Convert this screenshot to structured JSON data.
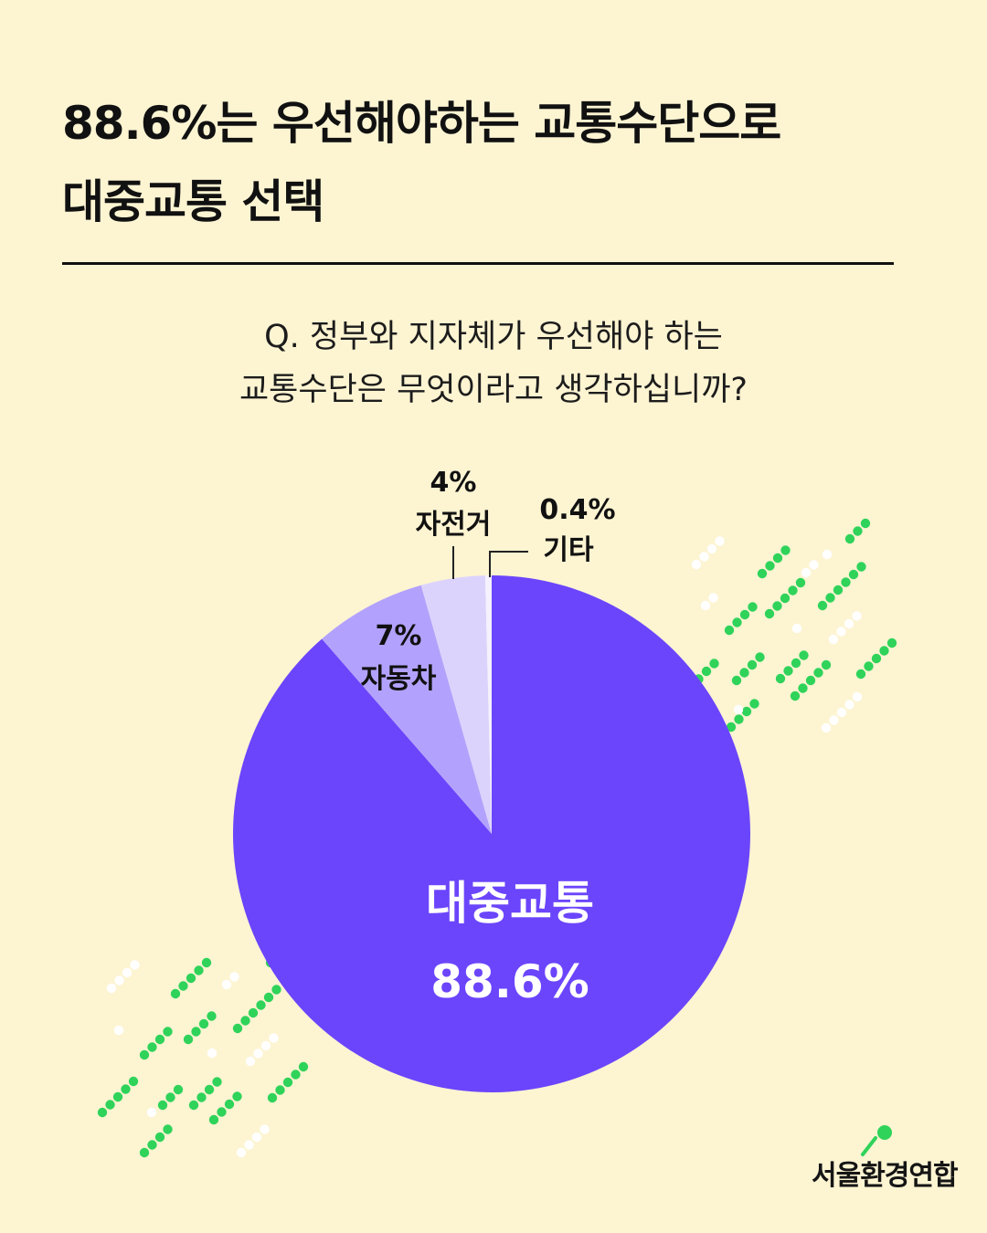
{
  "headline": {
    "line1": "88.6%는 우선해야하는 교통수단으로",
    "line2": "대중교통 선택"
  },
  "question": {
    "line1": "Q. 정부와 지자체가 우선해야 하는",
    "line2": "교통수단은 무엇이라고 생각하십니까?"
  },
  "chart_data": {
    "type": "pie",
    "title": "",
    "slices": [
      {
        "label": "대중교통",
        "value": 88.6,
        "value_label": "88.6%",
        "color": "#6b45fb"
      },
      {
        "label": "자동차",
        "value": 7,
        "value_label": "7%",
        "color": "#b3a2fd"
      },
      {
        "label": "자전거",
        "value": 4,
        "value_label": "4%",
        "color": "#dcd3fd"
      },
      {
        "label": "기타",
        "value": 0.4,
        "value_label": "0.4%",
        "color": "#f5f1ff"
      }
    ],
    "start": "12 o'clock",
    "direction": "clockwise"
  },
  "colors": {
    "background": "#fdf4d2",
    "text": "#111111",
    "accent_green": "#2fd35a",
    "dot_white": "#ffffff"
  },
  "logo": {
    "text": "서울환경연합"
  }
}
